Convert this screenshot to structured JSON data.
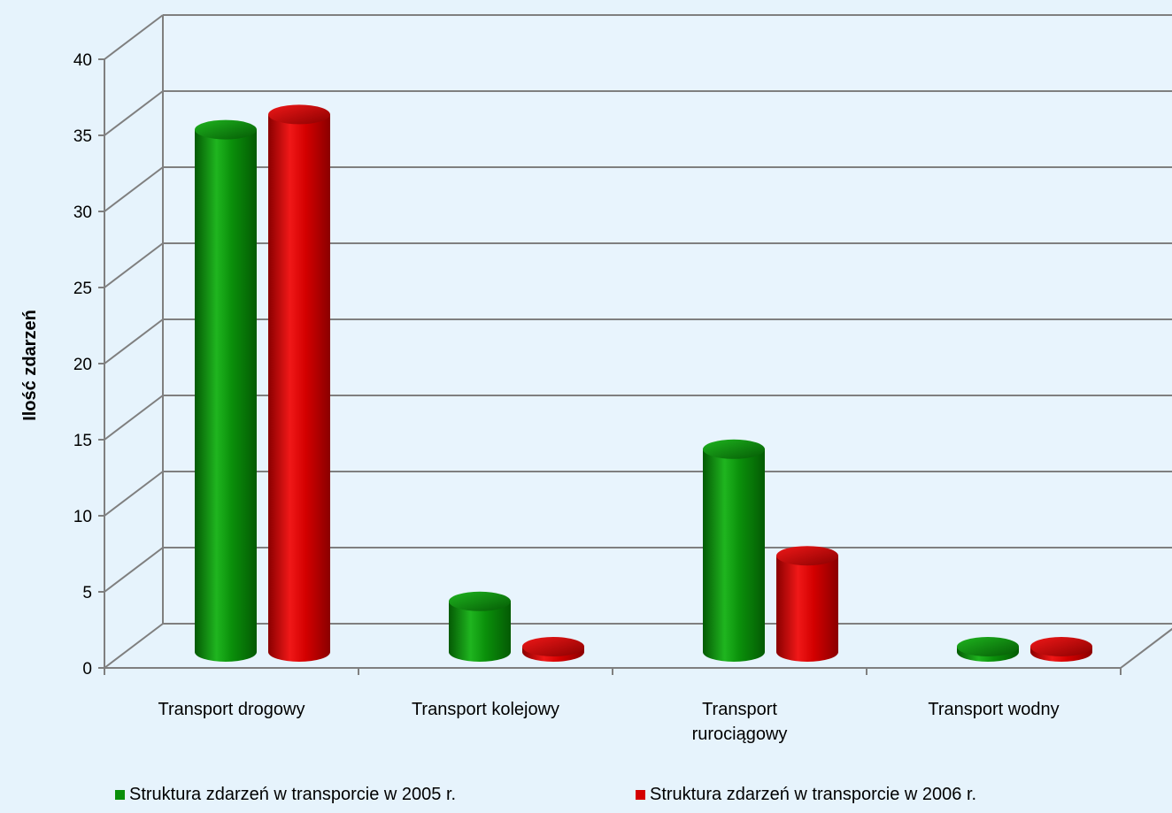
{
  "chart_data": {
    "type": "bar",
    "title": "",
    "xlabel": "",
    "ylabel": "Ilość zdarzeń",
    "ylim": [
      0,
      40
    ],
    "yticks": [
      0,
      5,
      10,
      15,
      20,
      25,
      30,
      35,
      40
    ],
    "grid": true,
    "legend_position": "bottom",
    "categories": [
      [
        "Transport drogowy"
      ],
      [
        "Transport kolejowy"
      ],
      [
        "Transport",
        "rurociągowy"
      ],
      [
        "Transport wodny"
      ]
    ],
    "series": [
      {
        "name": "Struktura zdarzeń w transporcie w 2005 r.",
        "color": "#0a8f0a",
        "values": [
          37,
          6,
          16,
          1
        ]
      },
      {
        "name": "Struktura zdarzeń w transporcie w 2006 r.",
        "color": "#d40000",
        "values": [
          38,
          3,
          9,
          1
        ]
      }
    ]
  }
}
